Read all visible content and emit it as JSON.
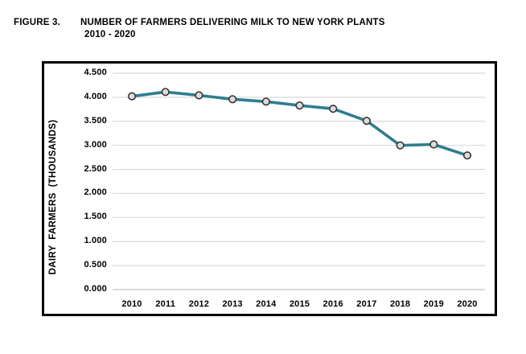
{
  "chart_data": {
    "type": "line",
    "figure_label": "FIGURE 3.",
    "title": "NUMBER OF FARMERS DELIVERING MILK TO NEW YORK PLANTS",
    "subtitle": "2010 - 2020",
    "ylabel": "DAIRY  FARMERS  (THOUSANDS)",
    "xlabel": "",
    "categories": [
      "2010",
      "2011",
      "2012",
      "2013",
      "2014",
      "2015",
      "2016",
      "2017",
      "2018",
      "2019",
      "2020"
    ],
    "values": [
      4.02,
      4.11,
      4.04,
      3.96,
      3.91,
      3.83,
      3.76,
      3.51,
      3.0,
      3.02,
      2.79
    ],
    "y_ticks": [
      "4.500",
      "4.000",
      "3.500",
      "3.000",
      "2.500",
      "2.000",
      "1.500",
      "1.000",
      "0.500",
      "0.000"
    ],
    "ylim": [
      0,
      4.5
    ],
    "grid": true,
    "legend_position": "none",
    "colors": {
      "line": "#2E7E8F",
      "marker_fill": "#DCDCDC",
      "marker_stroke": "#363636",
      "gridline": "#DADADA",
      "baseline": "#C2C2C2",
      "frame": "#000000",
      "text": "#000000"
    }
  }
}
